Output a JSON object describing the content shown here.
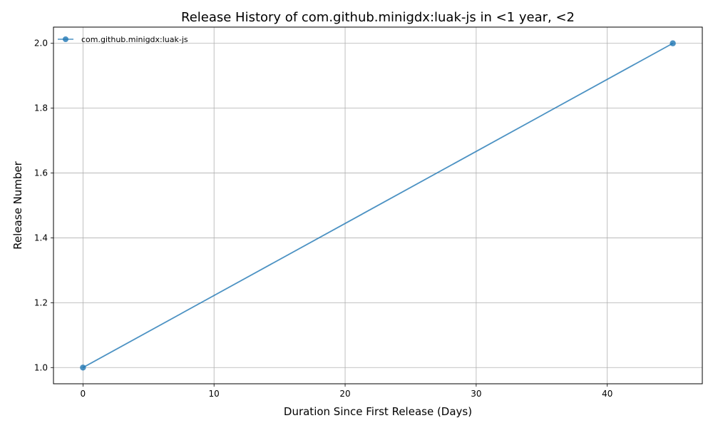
{
  "chart_data": {
    "type": "line",
    "title": "Release History of com.github.minigdx:luak-js in <1 year, <2",
    "xlabel": "Duration Since First Release (Days)",
    "ylabel": "Release Number",
    "xlim": [
      -2.25,
      47.25
    ],
    "ylim": [
      0.95,
      2.05
    ],
    "xticks": [
      0,
      10,
      20,
      30,
      40
    ],
    "yticks": [
      1.0,
      1.2,
      1.4,
      1.6,
      1.8,
      2.0
    ],
    "xtick_labels": [
      "0",
      "10",
      "20",
      "30",
      "40"
    ],
    "ytick_labels": [
      "1.0",
      "1.2",
      "1.4",
      "1.6",
      "1.8",
      "2.0"
    ],
    "grid": true,
    "legend_position": "top-left",
    "series": [
      {
        "name": "com.github.minigdx:luak-js",
        "color": "#1f77b4",
        "x": [
          0,
          45
        ],
        "y": [
          1,
          2
        ]
      }
    ]
  }
}
